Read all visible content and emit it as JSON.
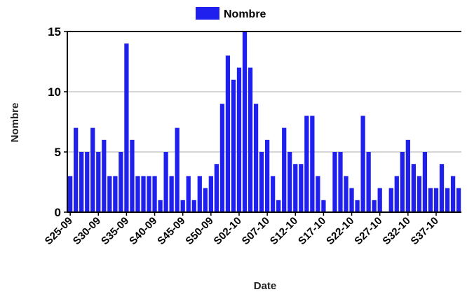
{
  "chart_data": {
    "type": "bar",
    "title": "",
    "xlabel": "Date",
    "ylabel": "Nombre",
    "ylim": [
      0,
      15
    ],
    "yticks": [
      0,
      5,
      10,
      15
    ],
    "grid": true,
    "legend_position": "top-center",
    "bar_color": "#2020ee",
    "grid_color": "#c8c8c8",
    "x_tick_labels": [
      {
        "label": "S25-09",
        "index": 0
      },
      {
        "label": "S30-09",
        "index": 5
      },
      {
        "label": "S35-09",
        "index": 10
      },
      {
        "label": "S40-09",
        "index": 15
      },
      {
        "label": "S45-09",
        "index": 20
      },
      {
        "label": "S50-09",
        "index": 25
      },
      {
        "label": "S02-10",
        "index": 30
      },
      {
        "label": "S07-10",
        "index": 35
      },
      {
        "label": "S12-10",
        "index": 40
      },
      {
        "label": "S17-10",
        "index": 45
      },
      {
        "label": "S22-10",
        "index": 50
      },
      {
        "label": "S27-10",
        "index": 55
      },
      {
        "label": "S32-10",
        "index": 60
      },
      {
        "label": "S37-10",
        "index": 65
      }
    ],
    "series": [
      {
        "name": "Nombre",
        "values": [
          3,
          7,
          5,
          5,
          7,
          5,
          6,
          3,
          3,
          5,
          14,
          6,
          3,
          3,
          3,
          3,
          1,
          5,
          3,
          7,
          1,
          3,
          1,
          3,
          2,
          3,
          4,
          9,
          13,
          11,
          12,
          15,
          12,
          9,
          5,
          6,
          3,
          1,
          7,
          5,
          4,
          4,
          8,
          8,
          3,
          1,
          0,
          5,
          5,
          3,
          2,
          1,
          8,
          5,
          1,
          2,
          0,
          2,
          3,
          5,
          6,
          4,
          3,
          5,
          2,
          2,
          4,
          2,
          3,
          2
        ]
      }
    ]
  }
}
